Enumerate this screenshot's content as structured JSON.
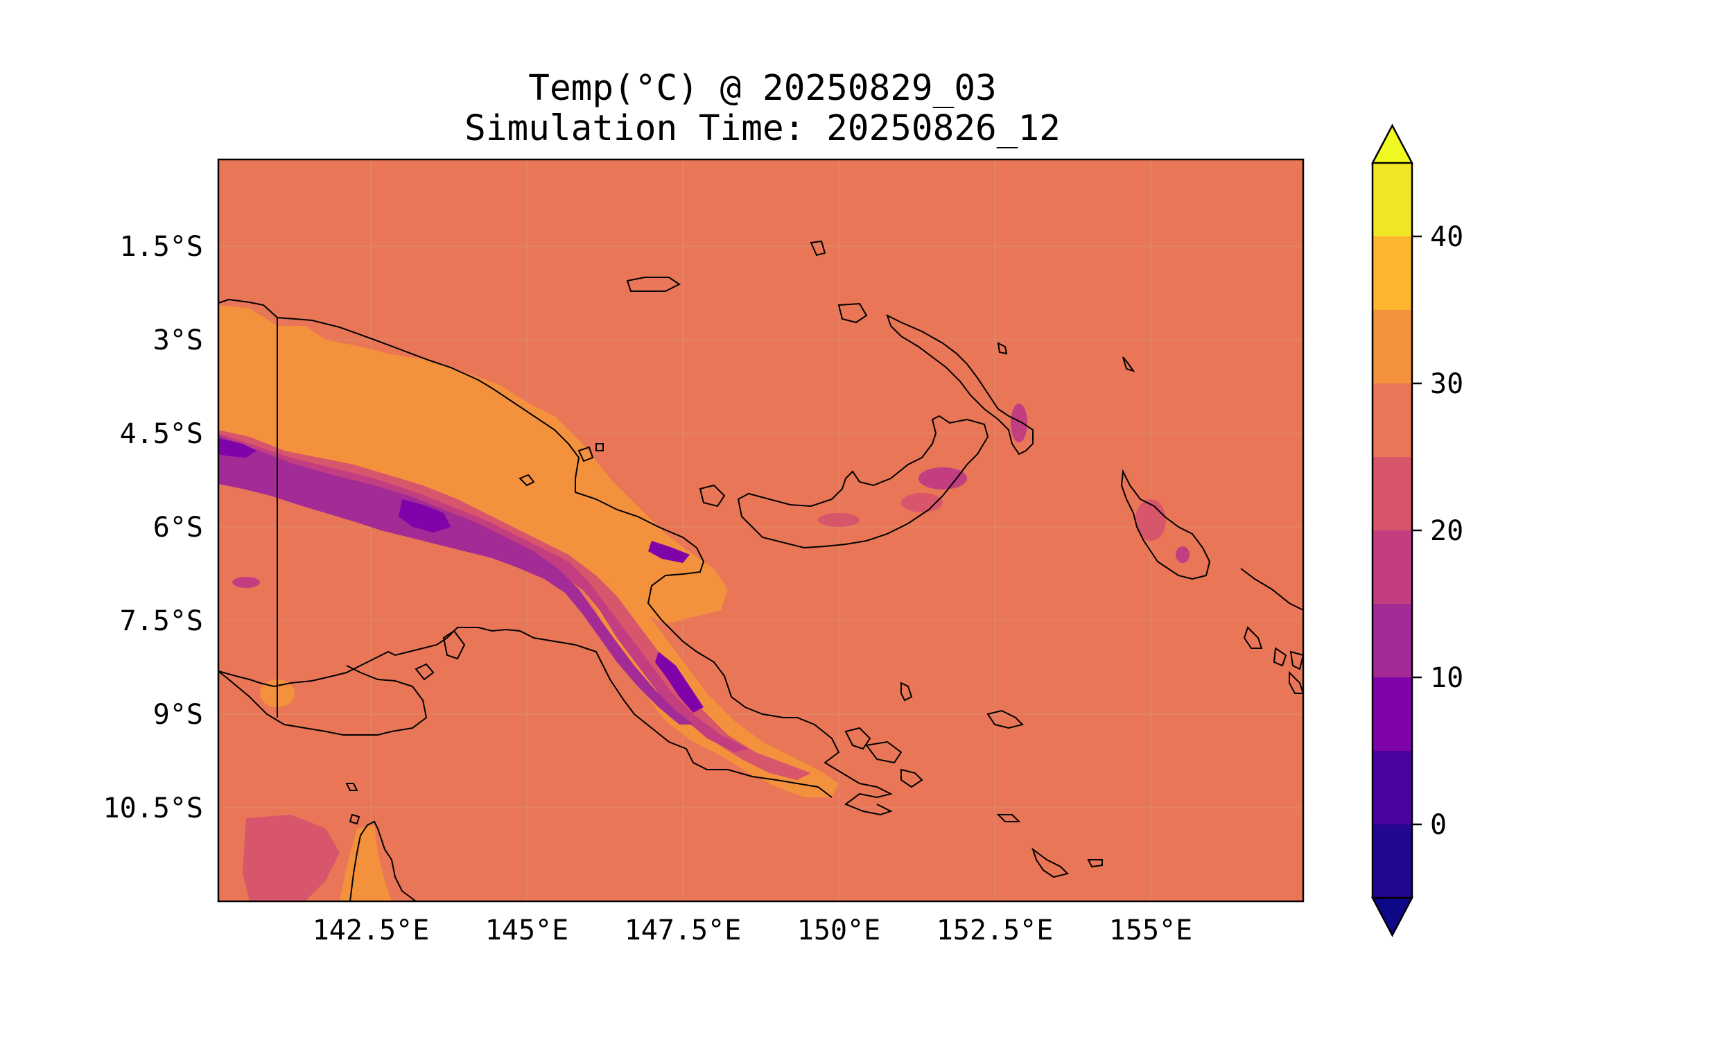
{
  "title": {
    "line1": "Temp(°C) @ 20250829_03",
    "line2": "Simulation Time: 20250826_12"
  },
  "map": {
    "x_ticks": [
      "142.5°E",
      "145°E",
      "147.5°E",
      "150°E",
      "152.5°E",
      "155°E"
    ],
    "y_ticks": [
      "1.5°S",
      "3°S",
      "4.5°S",
      "6°S",
      "7.5°S",
      "9°S",
      "10.5°S"
    ],
    "background_color": "#e97656",
    "coastline_color": "#000000"
  },
  "colorbar": {
    "tick_labels": [
      "0",
      "10",
      "20",
      "30",
      "40"
    ],
    "levels": [
      -5,
      0,
      5,
      10,
      15,
      20,
      25,
      30,
      35,
      40,
      45
    ],
    "colors": [
      "#23078f",
      "#4b029f",
      "#7e03a8",
      "#a22b96",
      "#c23e81",
      "#d7566c",
      "#e97656",
      "#f4913d",
      "#fcb52e",
      "#f2e627"
    ],
    "under_color": "#0d0887",
    "over_color": "#f0f921"
  }
}
